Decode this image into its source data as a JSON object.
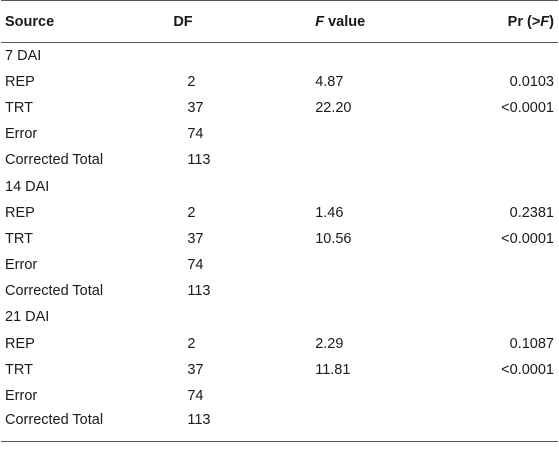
{
  "table": {
    "headers": {
      "source": "Source",
      "df": "DF",
      "f_value_italic": "F",
      "f_value_rest": " value",
      "pr_prefix": "Pr (>",
      "pr_italic": "F",
      "pr_suffix": ")"
    },
    "groups": [
      {
        "label": "7 DAI",
        "rows": [
          {
            "source": "REP",
            "df": "2",
            "f": "4.87",
            "p": "0.0103"
          },
          {
            "source": "TRT",
            "df": "37",
            "f": "22.20",
            "p": "<0.0001"
          },
          {
            "source": "Error",
            "df": "74",
            "f": "",
            "p": ""
          },
          {
            "source": "Corrected Total",
            "df": "113",
            "f": "",
            "p": ""
          }
        ]
      },
      {
        "label": "14 DAI",
        "rows": [
          {
            "source": "REP",
            "df": "2",
            "f": "1.46",
            "p": "0.2381"
          },
          {
            "source": "TRT",
            "df": "37",
            "f": "10.56",
            "p": "<0.0001"
          },
          {
            "source": "Error",
            "df": "74",
            "f": "",
            "p": ""
          },
          {
            "source": "Corrected Total",
            "df": "113",
            "f": "",
            "p": ""
          }
        ]
      },
      {
        "label": "21 DAI",
        "rows": [
          {
            "source": "REP",
            "df": "2",
            "f": "2.29",
            "p": "0.1087"
          },
          {
            "source": "TRT",
            "df": "37",
            "f": "11.81",
            "p": "<0.0001"
          },
          {
            "source": "Error",
            "df": "74",
            "f": "",
            "p": ""
          },
          {
            "source": "Corrected Total",
            "df": "113",
            "f": "",
            "p": ""
          }
        ]
      }
    ]
  }
}
